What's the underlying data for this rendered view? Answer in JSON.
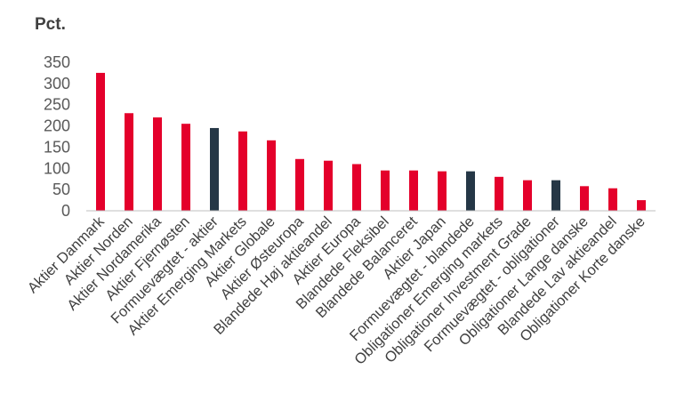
{
  "chart_data": {
    "type": "bar",
    "ylabel": "Pct.",
    "ylim": [
      0,
      350
    ],
    "yticks": [
      0,
      50,
      100,
      150,
      200,
      250,
      300,
      350
    ],
    "grid": false,
    "legend": "none",
    "categories": [
      "Aktier Danmark",
      "Aktier Norden",
      "Aktier Nordamerika",
      "Aktier Fjernøsten",
      "Formuevægtet - aktier",
      "Aktier Emerging Markets",
      "Aktier Globale",
      "Aktier Østeuropa",
      "Blandede Høj aktieandel",
      "Aktier Europa",
      "Blandede Fleksibel",
      "Blandede Balanceret",
      "Aktier Japan",
      "Formuevægtet - blandede",
      "Obligationer Emerging markets",
      "Obligationer Investment Grade",
      "Formuevægtet - obligationer",
      "Obligationer Lange danske",
      "Blandede Lav aktieandel",
      "Obligationer Korte danske"
    ],
    "values": [
      325,
      230,
      220,
      205,
      195,
      187,
      166,
      122,
      118,
      110,
      95,
      95,
      93,
      93,
      80,
      72,
      72,
      58,
      53,
      25
    ],
    "highlight": [
      false,
      false,
      false,
      false,
      true,
      false,
      false,
      false,
      false,
      false,
      false,
      false,
      false,
      true,
      false,
      false,
      true,
      false,
      false,
      false
    ],
    "colors": {
      "bar": "#e4002b",
      "highlight": "#253746",
      "axis": "#bfbfbf"
    }
  }
}
